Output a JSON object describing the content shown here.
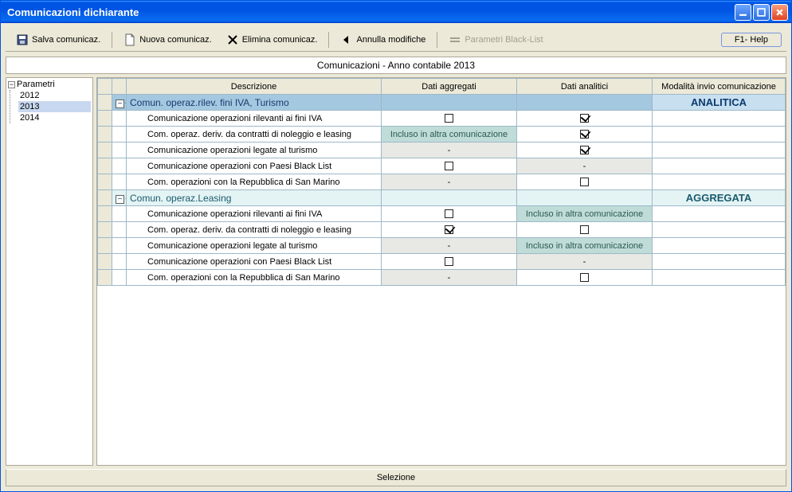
{
  "window": {
    "title": "Comunicazioni dichiarante"
  },
  "toolbar": {
    "save": "Salva comunicaz.",
    "new": "Nuova comunicaz.",
    "delete": "Elimina comunicaz.",
    "undo": "Annulla modifiche",
    "blacklist": "Parametri Black-List",
    "help": "F1- Help"
  },
  "banner": "Comunicazioni - Anno contabile 2013",
  "tree": {
    "root": "Parametri",
    "items": [
      "2012",
      "2013",
      "2014"
    ],
    "selected": "2013"
  },
  "grid": {
    "headers": {
      "descrizione": "Descrizione",
      "dati_aggregati": "Dati aggregati",
      "dati_analitici": "Dati analitici",
      "modalita": "Modalità invio comunicazione"
    },
    "groups": [
      {
        "label": "Comun. operaz.rilev. fini IVA, Turismo",
        "mode": "ANALITICA",
        "mode_class": "mode-analitica",
        "row_class": "",
        "rows": [
          {
            "desc": "Comunicazione operazioni rilevanti ai fini IVA",
            "agg": {
              "type": "chk",
              "checked": false
            },
            "ana": {
              "type": "chk",
              "checked": true
            }
          },
          {
            "desc": "Com. operaz. deriv. da contratti di noleggio e leasing",
            "agg": {
              "type": "incl",
              "text": "Incluso in altra comunicazione"
            },
            "ana": {
              "type": "chk",
              "checked": true
            }
          },
          {
            "desc": "Comunicazione operazioni legate al turismo",
            "agg": {
              "type": "dash"
            },
            "ana": {
              "type": "chk",
              "checked": true
            }
          },
          {
            "desc": "Comunicazione operazioni con Paesi Black List",
            "agg": {
              "type": "chk",
              "checked": false
            },
            "ana": {
              "type": "dash"
            }
          },
          {
            "desc": "Com. operazioni con la Repubblica di San Marino",
            "agg": {
              "type": "dash"
            },
            "ana": {
              "type": "chk",
              "checked": false
            }
          }
        ]
      },
      {
        "label": "Comun. operaz.Leasing",
        "mode": "AGGREGATA",
        "mode_class": "mode-aggregata",
        "row_class": "leasing",
        "rows": [
          {
            "desc": "Comunicazione operazioni rilevanti ai fini IVA",
            "agg": {
              "type": "chk",
              "checked": false
            },
            "ana": {
              "type": "incl",
              "text": "Incluso in altra comunicazione"
            }
          },
          {
            "desc": "Com. operaz. deriv. da contratti di noleggio e leasing",
            "agg": {
              "type": "chk",
              "checked": true
            },
            "ana": {
              "type": "chk",
              "checked": false
            }
          },
          {
            "desc": "Comunicazione operazioni legate al turismo",
            "agg": {
              "type": "dash"
            },
            "ana": {
              "type": "incl",
              "text": "Incluso in altra comunicazione"
            }
          },
          {
            "desc": "Comunicazione operazioni con Paesi Black List",
            "agg": {
              "type": "chk",
              "checked": false
            },
            "ana": {
              "type": "dash"
            }
          },
          {
            "desc": "Com. operazioni con la Repubblica di San Marino",
            "agg": {
              "type": "dash"
            },
            "ana": {
              "type": "chk",
              "checked": false
            }
          }
        ]
      }
    ]
  },
  "statusbar": "Selezione"
}
